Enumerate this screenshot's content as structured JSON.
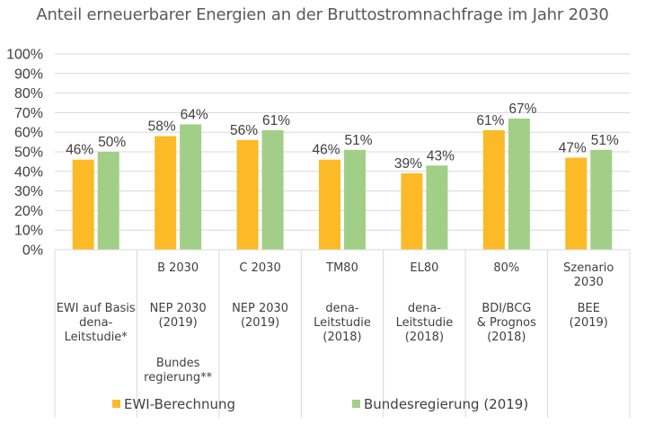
{
  "chart_data": {
    "type": "bar",
    "title": "Anteil erneuerbarer Energien an der Bruttostromnachfrage im Jahr 2030",
    "xlabel": "",
    "ylabel": "",
    "ylim": [
      0,
      100
    ],
    "yticks": [
      "0%",
      "10%",
      "20%",
      "30%",
      "40%",
      "50%",
      "60%",
      "70%",
      "80%",
      "90%",
      "100%"
    ],
    "grid": true,
    "legend_position": "bottom",
    "categories": [
      {
        "scenario": "",
        "source": [
          "EWI auf Basis",
          "dena-",
          "Leitstudie*"
        ],
        "note": []
      },
      {
        "scenario": "B 2030",
        "source": [
          "NEP 2030",
          "(2019)"
        ],
        "note": [
          "Bundes",
          "regierung**"
        ]
      },
      {
        "scenario": "C 2030",
        "source": [
          "NEP 2030",
          "(2019)"
        ],
        "note": []
      },
      {
        "scenario": "TM80",
        "source": [
          "dena-",
          "Leitstudie",
          "(2018)"
        ],
        "note": []
      },
      {
        "scenario": "EL80",
        "source": [
          "dena-",
          "Leitstudie",
          "(2018)"
        ],
        "note": []
      },
      {
        "scenario": "80%",
        "source": [
          "BDI/BCG",
          "& Prognos",
          "(2018)"
        ],
        "note": []
      },
      {
        "scenario": "Szenario\n2030",
        "source": [
          "BEE",
          "(2019)"
        ],
        "note": []
      }
    ],
    "series": [
      {
        "name": "EWI-Berechnung",
        "color": "#FBBA26",
        "values": [
          46,
          58,
          56,
          46,
          39,
          61,
          47
        ],
        "labels": [
          "46%",
          "58%",
          "56%",
          "46%",
          "39%",
          "61%",
          "47%"
        ]
      },
      {
        "name": "Bundesregierung (2019)",
        "color": "#A2CF87",
        "values": [
          50,
          64,
          61,
          51,
          43,
          67,
          51
        ],
        "labels": [
          "50%",
          "64%",
          "61%",
          "51%",
          "43%",
          "67%",
          "51%"
        ]
      }
    ]
  }
}
